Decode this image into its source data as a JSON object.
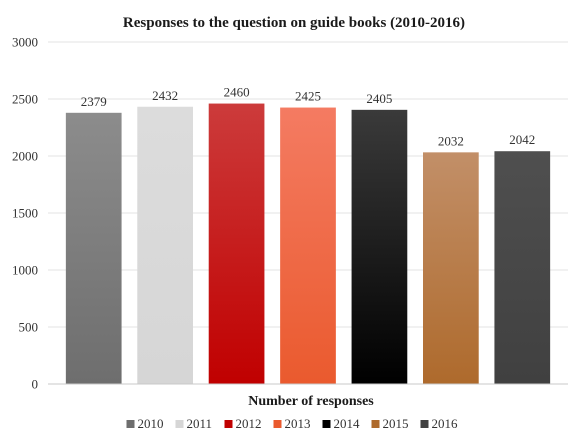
{
  "chart_data": {
    "type": "bar",
    "title": "Responses to the question on guide books (2010-2016)",
    "xlabel": "Number of responses",
    "ylabel": "",
    "ylim": [
      0,
      3000
    ],
    "yticks": [
      0,
      500,
      1000,
      1500,
      2000,
      2500,
      3000
    ],
    "grid": true,
    "legend_position": "bottom",
    "series": [
      {
        "name": "2010",
        "value": 2379,
        "label": "2379",
        "color_top": "#8c8c8c",
        "color_bottom": "#6e6e6e"
      },
      {
        "name": "2011",
        "value": 2432,
        "label": "2432",
        "color_top": "#dcdcdc",
        "color_bottom": "#d6d6d6"
      },
      {
        "name": "2012",
        "value": 2460,
        "label": "2460",
        "color_top": "#cc3b3b",
        "color_bottom": "#c00000"
      },
      {
        "name": "2013",
        "value": 2425,
        "label": "2425",
        "color_top": "#f47b62",
        "color_bottom": "#ea5a2e"
      },
      {
        "name": "2014",
        "value": 2405,
        "label": "2405",
        "color_top": "#3a3a3a",
        "color_bottom": "#000000"
      },
      {
        "name": "2015",
        "value": 2032,
        "label": "2032",
        "color_top": "#c28f68",
        "color_bottom": "#ae6a2c"
      },
      {
        "name": "2016",
        "value": 2042,
        "label": "2042",
        "color_top": "#4f4f4f",
        "color_bottom": "#404040"
      }
    ]
  }
}
